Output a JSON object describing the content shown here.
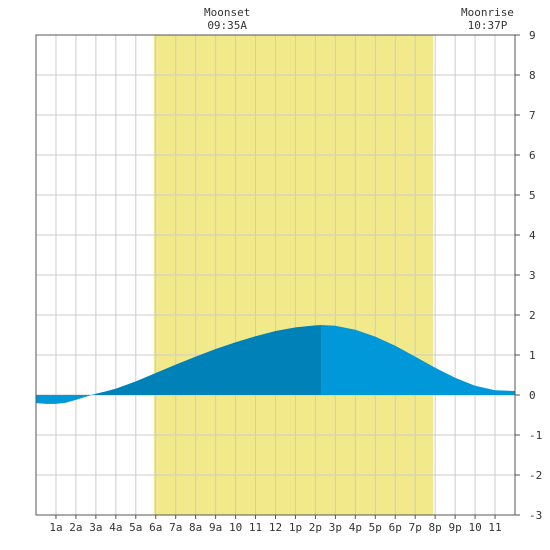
{
  "chart_data": {
    "type": "area",
    "title": "",
    "xlabel": "",
    "ylabel": "",
    "x_range_hours": [
      0,
      24
    ],
    "ylim": [
      -3,
      9
    ],
    "grid": true,
    "x_tick_labels": [
      "1a",
      "2a",
      "3a",
      "4a",
      "5a",
      "6a",
      "7a",
      "8a",
      "9a",
      "10",
      "11",
      "12",
      "1p",
      "2p",
      "3p",
      "4p",
      "5p",
      "6p",
      "7p",
      "8p",
      "9p",
      "10",
      "11"
    ],
    "y_ticks": [
      -3,
      -2,
      -1,
      0,
      1,
      2,
      3,
      4,
      5,
      6,
      7,
      8,
      9
    ],
    "daylight_hours": [
      5.9,
      19.9
    ],
    "high_tide_hour": 14.3,
    "moon_events": [
      {
        "label": "Moonset",
        "time": "09:35A",
        "hour": 9.58
      },
      {
        "label": "Moonrise",
        "time": "10:37P",
        "hour": 22.62
      }
    ],
    "tide_series": {
      "name": "",
      "x": [
        0,
        0.5,
        1,
        1.5,
        2,
        2.5,
        3,
        3.5,
        4,
        5,
        6,
        7,
        8,
        9,
        10,
        11,
        12,
        13,
        14,
        14.3,
        15,
        16,
        17,
        18,
        19,
        20,
        21,
        22,
        23,
        24
      ],
      "y": [
        -0.2,
        -0.22,
        -0.22,
        -0.19,
        -0.12,
        -0.04,
        0.03,
        0.09,
        0.16,
        0.34,
        0.55,
        0.76,
        0.96,
        1.15,
        1.32,
        1.47,
        1.6,
        1.69,
        1.74,
        1.75,
        1.73,
        1.63,
        1.46,
        1.23,
        0.96,
        0.68,
        0.43,
        0.23,
        0.12,
        0.1
      ]
    },
    "colors": {
      "daylight": "#f2e98a",
      "tide_rising": "#0081b8",
      "tide_falling": "#0098d8",
      "grid": "#cccccc",
      "axis": "#000000"
    }
  }
}
